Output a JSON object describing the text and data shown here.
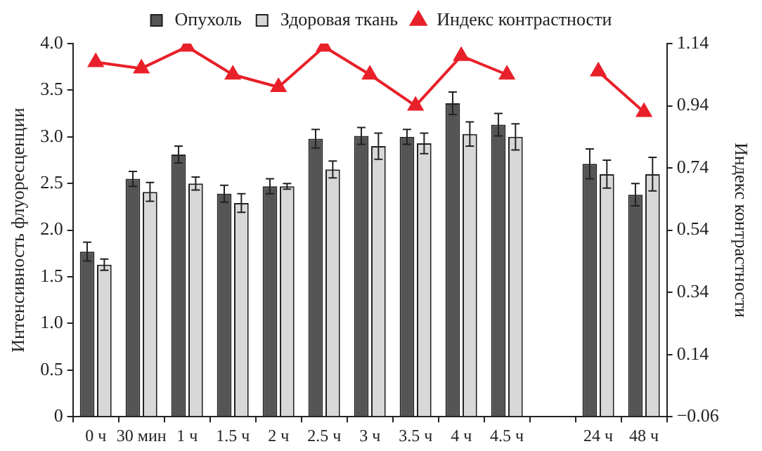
{
  "chart_data": {
    "type": "bar",
    "ylabel": "Интенсивность флуоресценции",
    "y2label": "Индекс контрастности",
    "categories": [
      "0 ч",
      "30 мин",
      "1 ч",
      "1.5 ч",
      "2 ч",
      "2.5 ч",
      "3 ч",
      "3.5 ч",
      "4 ч",
      "4.5 ч",
      null,
      "24 ч",
      "48 ч"
    ],
    "series": [
      {
        "name": "Опухоль",
        "color": "#555555",
        "values": [
          1.77,
          2.55,
          2.81,
          2.39,
          2.47,
          2.98,
          3.01,
          3.0,
          3.36,
          3.13,
          null,
          2.71,
          2.38
        ],
        "errors": [
          0.1,
          0.08,
          0.09,
          0.09,
          0.08,
          0.1,
          0.09,
          0.08,
          0.12,
          0.12,
          null,
          0.16,
          0.12
        ]
      },
      {
        "name": "Здоровая ткань",
        "color": "#d8d8d8",
        "values": [
          1.63,
          2.41,
          2.5,
          2.29,
          2.47,
          2.65,
          2.9,
          2.93,
          3.03,
          3.0,
          null,
          2.6,
          2.6
        ],
        "errors": [
          0.06,
          0.1,
          0.07,
          0.1,
          0.03,
          0.09,
          0.14,
          0.11,
          0.13,
          0.14,
          null,
          0.15,
          0.18
        ]
      },
      {
        "name": "Индекс контрастности",
        "type": "line",
        "axis": "y2",
        "color": "#e8202a",
        "values": [
          1.08,
          1.06,
          1.13,
          1.04,
          1.0,
          1.13,
          1.04,
          0.94,
          1.1,
          1.04,
          null,
          1.05,
          0.92
        ]
      }
    ],
    "ylim": [
      0,
      4
    ],
    "yticks": [
      0,
      {
        "value": 0.5,
        "label": "0.5"
      },
      {
        "value": 1,
        "label": "1.0"
      },
      {
        "value": 1.5,
        "label": "1.5"
      },
      {
        "value": 2,
        "label": "2.0"
      },
      {
        "value": 2.5,
        "label": "2.5"
      },
      {
        "value": 3,
        "label": "3.0"
      },
      {
        "value": 3.5,
        "label": "3.5"
      },
      {
        "value": 4,
        "label": "4.0"
      }
    ],
    "y2lim": [
      -0.06,
      1.14
    ],
    "y2ticks": [
      {
        "value": -0.06,
        "label": "−0.06"
      },
      0.14,
      0.34,
      0.54,
      0.74,
      0.94,
      1.14
    ],
    "marker": "triangle",
    "legend": "top",
    "grid": false
  }
}
